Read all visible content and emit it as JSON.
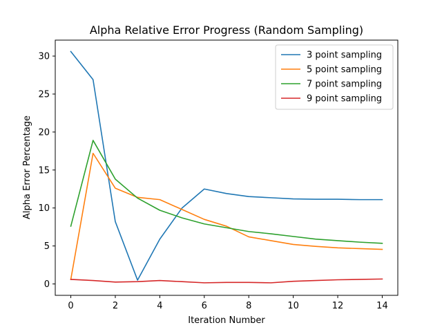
{
  "chart_data": {
    "type": "line",
    "title": "Alpha Relative Error Progress (Random Sampling)",
    "xlabel": "Iteration Number",
    "ylabel": "Alpha Error Percentage",
    "xlim": [
      -0.7,
      14.7
    ],
    "ylim": [
      -1.5,
      32.1
    ],
    "xticks": [
      0,
      2,
      4,
      6,
      8,
      10,
      12,
      14
    ],
    "yticks": [
      0,
      5,
      10,
      15,
      20,
      25,
      30
    ],
    "grid": false,
    "legend": "top-right",
    "x": [
      0,
      1,
      2,
      3,
      4,
      5,
      6,
      7,
      8,
      9,
      10,
      11,
      12,
      13,
      14
    ],
    "series": [
      {
        "name": "3 point sampling",
        "color": "#1f77b4",
        "values": [
          30.6,
          26.9,
          8.2,
          0.5,
          5.9,
          10.0,
          12.5,
          11.9,
          11.5,
          11.35,
          11.2,
          11.15,
          11.15,
          11.1,
          11.1
        ]
      },
      {
        "name": "5 point sampling",
        "color": "#ff7f0e",
        "values": [
          0.6,
          17.2,
          12.6,
          11.4,
          11.1,
          9.8,
          8.5,
          7.6,
          6.2,
          5.7,
          5.2,
          4.95,
          4.75,
          4.65,
          4.55
        ]
      },
      {
        "name": "7 point sampling",
        "color": "#2ca02c",
        "values": [
          7.6,
          18.9,
          13.8,
          11.3,
          9.7,
          8.7,
          7.9,
          7.4,
          6.9,
          6.6,
          6.25,
          5.9,
          5.7,
          5.5,
          5.35
        ]
      },
      {
        "name": "9 point sampling",
        "color": "#d62728",
        "values": [
          0.6,
          0.45,
          0.25,
          0.3,
          0.45,
          0.3,
          0.15,
          0.2,
          0.2,
          0.15,
          0.35,
          0.45,
          0.55,
          0.6,
          0.65
        ]
      }
    ]
  }
}
